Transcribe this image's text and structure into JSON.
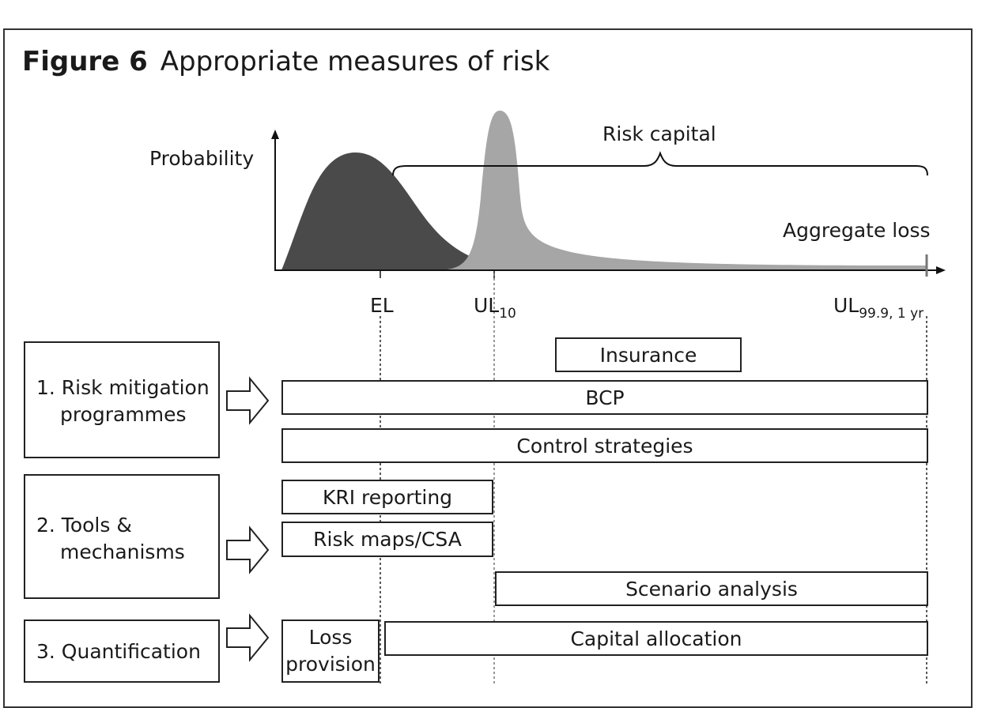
{
  "figure": {
    "label": "Figure 6",
    "title": "Appropriate measures of risk"
  },
  "chart": {
    "y_axis_label": "Probability",
    "x_axis_label": "Aggregate loss",
    "brace_label": "Risk capital",
    "markers": {
      "el": "EL",
      "ul10_main": "UL",
      "ul10_sub": "10",
      "ul999_main": "UL",
      "ul999_sub": "99.9, 1 yr"
    },
    "colors": {
      "expected_curve": "#4a4a4a",
      "stress_curve": "#a6a6a6"
    }
  },
  "rows": [
    {
      "label_line1": "1. Risk mitigation",
      "label_line2": "programmes"
    },
    {
      "label_line1": "2. Tools &",
      "label_line2": "mechanisms"
    },
    {
      "label_line1": "3. Quantification",
      "label_line2": ""
    }
  ],
  "bars": {
    "insurance": "Insurance",
    "bcp": "BCP",
    "control_strategies": "Control strategies",
    "kri_reporting": "KRI reporting",
    "risk_maps": "Risk maps/CSA",
    "scenario_analysis": "Scenario analysis",
    "loss_provision_line1": "Loss",
    "loss_provision_line2": "provision",
    "capital_allocation": "Capital allocation"
  }
}
